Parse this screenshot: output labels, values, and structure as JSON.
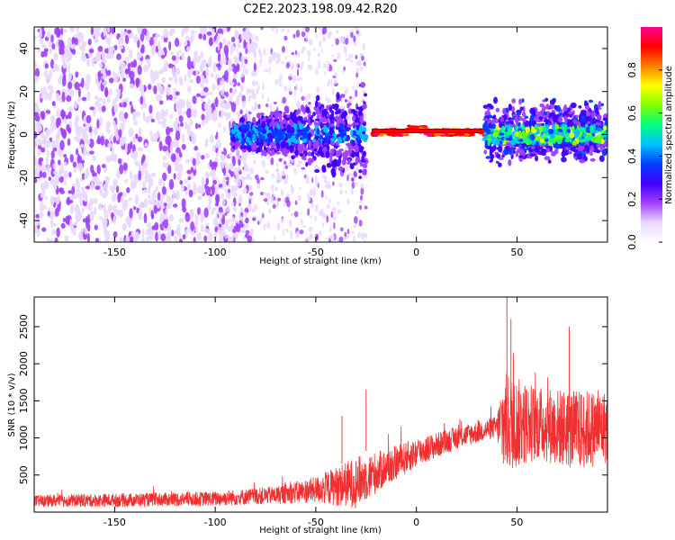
{
  "figure": {
    "title": "C2E2.2023.198.09.42.R20"
  },
  "chart_data": [
    {
      "type": "heatmap",
      "xlabel": "Height of straight line (km)",
      "ylabel": "Frequency (Hz)",
      "xlim": [
        -190,
        95
      ],
      "ylim": [
        -50,
        50
      ],
      "x_ticks": [
        -150,
        -100,
        -50,
        0,
        50
      ],
      "y_ticks": [
        -40,
        -20,
        0,
        20,
        40
      ],
      "colorbar": {
        "label": "Normalized spectral amplitude",
        "range": [
          0,
          1
        ],
        "ticks": [
          0.0,
          0.2,
          0.4,
          0.6,
          0.8
        ],
        "tick_labels": [
          "0.0",
          "0.2",
          "0.4",
          "0.6",
          "0.8"
        ],
        "colormap": [
          "#ffffff",
          "#e8d8ff",
          "#a040ff",
          "#4000ff",
          "#0040ff",
          "#00c0ff",
          "#00ff80",
          "#80ff00",
          "#ffff00",
          "#ff8000",
          "#ff0000",
          "#ff0090"
        ]
      },
      "regions": [
        {
          "x_range": [
            -190,
            -95
          ],
          "description_level": 0.2,
          "freq_spread": [
            -50,
            50
          ]
        },
        {
          "x_range": [
            -95,
            -25
          ],
          "description_level": 0.3,
          "freq_spread": [
            -35,
            30
          ]
        },
        {
          "x_range": [
            -25,
            35
          ],
          "description_level": 0.9,
          "freq_center": 1
        },
        {
          "x_range": [
            35,
            95
          ],
          "description_level": 0.55,
          "freq_spread": [
            -15,
            20
          ]
        }
      ]
    },
    {
      "type": "line",
      "xlabel": "Height of straight line (km)",
      "ylabel": "SNR (10 * v/v)",
      "xlim": [
        -190,
        95
      ],
      "ylim": [
        0,
        2900
      ],
      "x_ticks": [
        -150,
        -100,
        -50,
        0,
        50
      ],
      "y_ticks": [
        500,
        1000,
        1500,
        2000,
        2500
      ],
      "color": "#f03030",
      "envelope": [
        {
          "x": -190,
          "base": 150,
          "amp": 80
        },
        {
          "x": -150,
          "base": 160,
          "amp": 90
        },
        {
          "x": -100,
          "base": 180,
          "amp": 100
        },
        {
          "x": -70,
          "base": 230,
          "amp": 120
        },
        {
          "x": -50,
          "base": 300,
          "amp": 180
        },
        {
          "x": -30,
          "base": 400,
          "amp": 350
        },
        {
          "x": -15,
          "base": 600,
          "amp": 250
        },
        {
          "x": 0,
          "base": 800,
          "amp": 200
        },
        {
          "x": 20,
          "base": 1000,
          "amp": 150
        },
        {
          "x": 40,
          "base": 1150,
          "amp": 150
        },
        {
          "x": 43,
          "base": 1200,
          "amp": 700
        },
        {
          "x": 60,
          "base": 1200,
          "amp": 500
        },
        {
          "x": 80,
          "base": 1100,
          "amp": 550
        },
        {
          "x": 95,
          "base": 1150,
          "amp": 500
        }
      ],
      "peaks": [
        {
          "x": 45,
          "y": 2900
        },
        {
          "x": 47,
          "y": 2600
        },
        {
          "x": 76,
          "y": 2500
        },
        {
          "x": -25,
          "y": 1650
        },
        {
          "x": -37,
          "y": 1300
        }
      ]
    }
  ]
}
